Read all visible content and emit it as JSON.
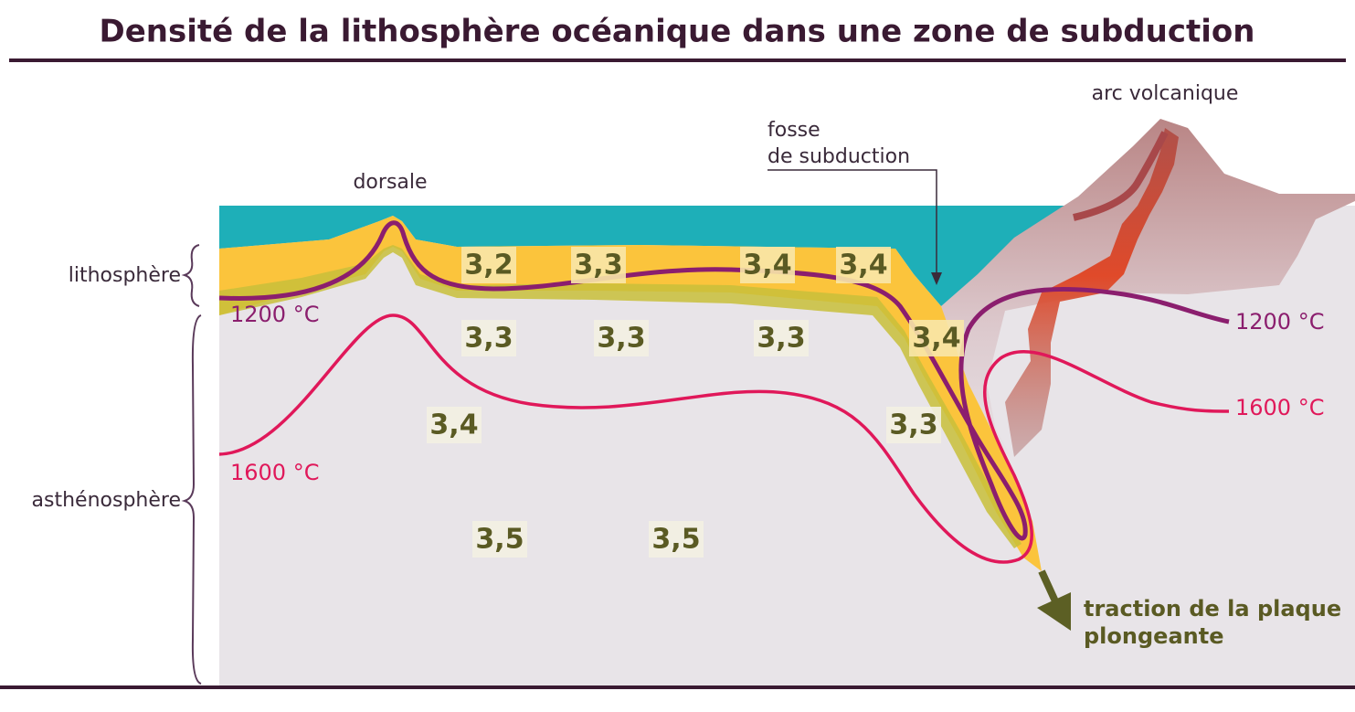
{
  "title": "Densité de la lithosphère océanique dans une zone de subduction",
  "labels": {
    "dorsale": "dorsale",
    "fosse": [
      "fosse",
      "de subduction"
    ],
    "arc": "arc volcanique",
    "lithosphere": "lithosphère",
    "asthenosphere": "asthénosphère",
    "traction": [
      "traction de la plaque",
      "plongeante"
    ]
  },
  "isotherms": {
    "left_1200": "1200 °C",
    "right_1200": "1200 °C",
    "left_1600": "1600 °C",
    "right_1600": "1600 °C"
  },
  "densities": [
    "3,2",
    "3,3",
    "3,4",
    "3,4",
    "3,3",
    "3,3",
    "3,3",
    "3,4",
    "3,4",
    "3,3",
    "3,5",
    "3,5"
  ]
}
